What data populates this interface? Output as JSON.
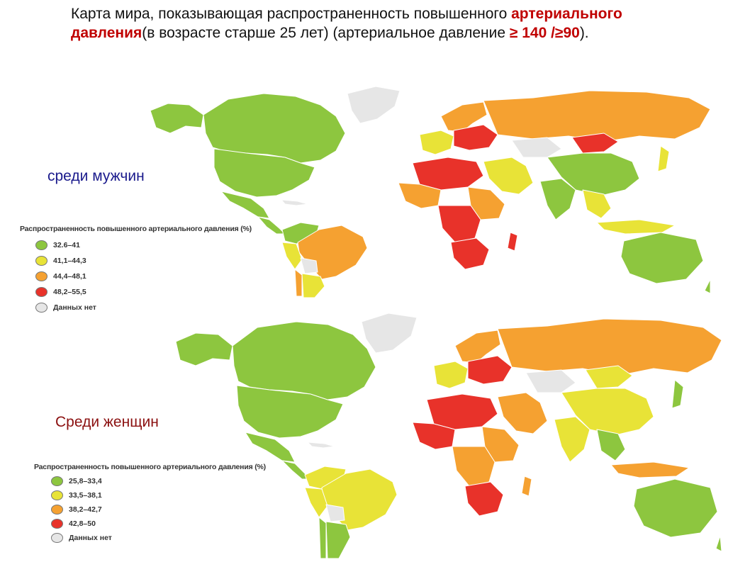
{
  "title": {
    "line1_part1": "Карта мира, показывающая распространенность повышенного ",
    "line1_highlight": "артериального",
    "line2_highlight": "давления",
    "line2_part2": "(в возрасте старше 25 лет) (артериальное давление ",
    "line2_highlight2": "≥ 140  /≥90",
    "line2_end": ")."
  },
  "colors": {
    "green": "#8dc63f",
    "yellow": "#e8e337",
    "orange": "#f5a131",
    "red": "#e8322a",
    "nodata": "#e6e6e6",
    "label_men": "#1a1a8c",
    "label_women": "#8b1010",
    "highlight": "#c00000"
  },
  "men": {
    "label": "среди мужчин",
    "legend": {
      "title": "Распространенность повышенного артериального давления (%)",
      "items": [
        {
          "label": "32.6–41",
          "color": "#8dc63f"
        },
        {
          "label": "41,1–44,3",
          "color": "#e8e337"
        },
        {
          "label": "44,4–48,1",
          "color": "#f5a131"
        },
        {
          "label": "48,2–55,5",
          "color": "#e8322a"
        },
        {
          "label": "Данных нет",
          "color": "#e6e6e6"
        }
      ]
    }
  },
  "women": {
    "label": "Среди женщин",
    "legend": {
      "title": "Распространенность повышенного артериального давления (%)",
      "items": [
        {
          "label": "25,8–33,4",
          "color": "#8dc63f"
        },
        {
          "label": "33,5–38,1",
          "color": "#e8e337"
        },
        {
          "label": "38,2–42,7",
          "color": "#f5a131"
        },
        {
          "label": "42,8–50",
          "color": "#e8322a"
        },
        {
          "label": "Данных нет",
          "color": "#e6e6e6"
        }
      ]
    }
  }
}
